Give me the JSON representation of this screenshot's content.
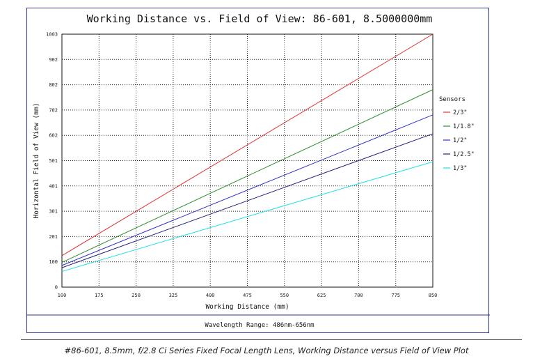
{
  "chart_data": {
    "type": "line",
    "title": "Working Distance vs. Field of View: 86-601, 8.5000000mm",
    "xlabel": "Working Distance (mm)",
    "ylabel": "Horizontal Field of View (mm)",
    "x_ticks": [
      "100",
      "175",
      "250",
      "325",
      "400",
      "475",
      "550",
      "625",
      "700",
      "775",
      "850"
    ],
    "y_ticks": [
      "0",
      "100",
      "201",
      "301",
      "401",
      "501",
      "602",
      "702",
      "802",
      "902",
      "1003"
    ],
    "xlim": [
      100,
      850
    ],
    "ylim": [
      0,
      1003
    ],
    "grid": true,
    "legend": {
      "title": "Sensors",
      "position": "right"
    },
    "series": [
      {
        "name": "2/3\"",
        "color": "#e03030",
        "x": [
          100,
          850
        ],
        "y": [
          125,
          1003
        ]
      },
      {
        "name": "1/1.8\"",
        "color": "#2f8f2f",
        "x": [
          100,
          850
        ],
        "y": [
          98,
          783
        ]
      },
      {
        "name": "1/2\"",
        "color": "#3030c8",
        "x": [
          100,
          850
        ],
        "y": [
          86,
          683
        ]
      },
      {
        "name": "1/2.5\"",
        "color": "#20207a",
        "x": [
          100,
          850
        ],
        "y": [
          77,
          608
        ]
      },
      {
        "name": "1/3\"",
        "color": "#20e0e0",
        "x": [
          100,
          850
        ],
        "y": [
          62,
          497
        ]
      }
    ],
    "footer": "Wavelength Range: 486nm-656nm"
  },
  "caption": "#86-601, 8.5mm, f/2.8 Ci Series Fixed Focal Length Lens, Working Distance versus Field of View Plot"
}
